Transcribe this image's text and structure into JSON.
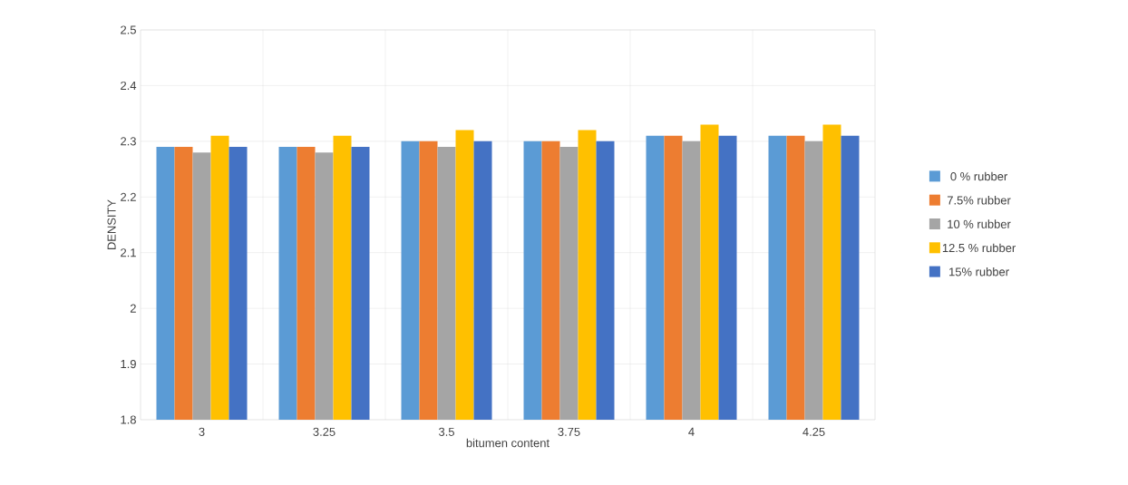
{
  "chart_data": {
    "type": "bar",
    "xlabel": "bitumen content",
    "ylabel": "DENSITY",
    "categories": [
      "3",
      "3.25",
      "3.5",
      "3.75",
      "4",
      "4.25"
    ],
    "series": [
      {
        "name": "0 % rubber",
        "color": "#5b9bd5",
        "values": [
          2.29,
          2.29,
          2.3,
          2.3,
          2.31,
          2.31
        ]
      },
      {
        "name": "7.5% rubber",
        "color": "#ed7d31",
        "values": [
          2.29,
          2.29,
          2.3,
          2.3,
          2.31,
          2.31
        ]
      },
      {
        "name": "10 % rubber",
        "color": "#a5a5a5",
        "values": [
          2.28,
          2.28,
          2.29,
          2.29,
          2.3,
          2.3
        ]
      },
      {
        "name": "12.5 % rubber",
        "color": "#ffc000",
        "values": [
          2.31,
          2.31,
          2.32,
          2.32,
          2.33,
          2.33
        ]
      },
      {
        "name": "15% rubber",
        "color": "#4472c4",
        "values": [
          2.29,
          2.29,
          2.3,
          2.3,
          2.31,
          2.31
        ]
      }
    ],
    "ylim": [
      1.8,
      2.5
    ],
    "yticks": [
      1.8,
      1.9,
      2,
      2.1,
      2.2,
      2.3,
      2.4,
      2.5
    ],
    "grid": true,
    "legend": "right"
  }
}
